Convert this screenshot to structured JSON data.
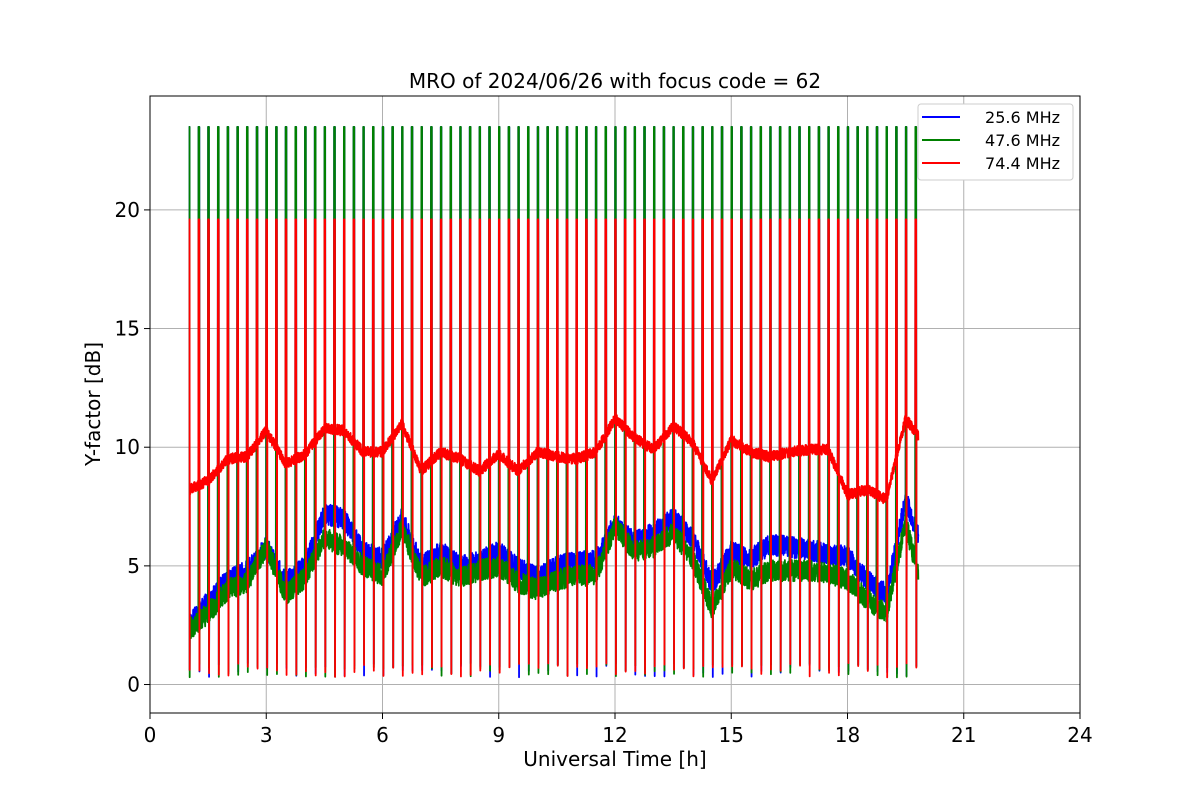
{
  "chart_data": {
    "type": "line",
    "title": "MRO of 2024/06/26 with focus code = 62",
    "xlabel": "Universal Time [h]",
    "ylabel": "Y-factor [dB]",
    "xlim": [
      0,
      24
    ],
    "ylim": [
      -1.2,
      24.8
    ],
    "xticks": [
      0,
      3,
      6,
      9,
      12,
      15,
      18,
      21,
      24
    ],
    "yticks": [
      0,
      5,
      10,
      15,
      20
    ],
    "grid": true,
    "legend_position": "top-right",
    "pulse": {
      "start_hour": 1.0,
      "end_hour": 19.83,
      "period_hours": 0.25,
      "width_hours": 0.05,
      "high_values": {
        "25.6 MHz": 23.5,
        "47.6 MHz": 23.5,
        "74.4 MHz": 19.6
      },
      "low_value": 0.3
    },
    "series": [
      {
        "name": "25.6 MHz",
        "color": "#0000ff",
        "x": [
          1.0,
          1.5,
          2.0,
          2.5,
          3.0,
          3.5,
          4.0,
          4.5,
          5.0,
          5.5,
          6.0,
          6.5,
          7.0,
          7.5,
          8.0,
          8.5,
          9.0,
          9.5,
          10.0,
          10.5,
          11.0,
          11.5,
          12.0,
          12.5,
          13.0,
          13.5,
          14.0,
          14.5,
          15.0,
          15.5,
          16.0,
          16.5,
          17.0,
          17.5,
          18.0,
          18.5,
          19.0,
          19.5,
          19.83
        ],
        "y": [
          2.5,
          3.5,
          4.4,
          4.8,
          5.8,
          4.3,
          5.0,
          7.2,
          7.0,
          5.6,
          5.3,
          7.0,
          5.0,
          5.6,
          5.0,
          5.2,
          5.6,
          4.9,
          4.5,
          5.0,
          5.2,
          5.2,
          6.8,
          6.0,
          6.4,
          7.0,
          6.2,
          4.2,
          5.6,
          5.3,
          5.9,
          5.8,
          5.7,
          5.5,
          5.4,
          4.4,
          3.8,
          7.8,
          6.2
        ]
      },
      {
        "name": "47.6 MHz",
        "color": "#008000",
        "x": [
          1.0,
          1.5,
          2.0,
          2.5,
          3.0,
          3.5,
          4.0,
          4.5,
          5.0,
          5.5,
          6.0,
          6.5,
          7.0,
          7.5,
          8.0,
          8.5,
          9.0,
          9.5,
          10.0,
          10.5,
          11.0,
          11.5,
          12.0,
          12.5,
          13.0,
          13.5,
          14.0,
          14.5,
          15.0,
          15.5,
          16.0,
          16.5,
          17.0,
          17.5,
          18.0,
          18.5,
          19.0,
          19.5,
          19.83
        ],
        "y": [
          2.3,
          3.0,
          4.0,
          4.3,
          5.8,
          3.8,
          4.5,
          6.2,
          5.8,
          5.0,
          4.6,
          6.6,
          4.5,
          5.0,
          4.5,
          4.8,
          5.0,
          4.3,
          4.0,
          4.4,
          4.6,
          4.6,
          6.7,
          5.6,
          5.8,
          6.4,
          5.3,
          3.2,
          4.9,
          4.4,
          4.8,
          4.8,
          4.8,
          4.7,
          4.4,
          3.6,
          3.0,
          6.8,
          4.6
        ]
      },
      {
        "name": "74.4 MHz",
        "color": "#ff0000",
        "x": [
          1.0,
          1.5,
          2.0,
          2.5,
          3.0,
          3.5,
          4.0,
          4.5,
          5.0,
          5.5,
          6.0,
          6.5,
          7.0,
          7.5,
          8.0,
          8.5,
          9.0,
          9.5,
          10.0,
          10.5,
          11.0,
          11.5,
          12.0,
          12.5,
          13.0,
          13.5,
          14.0,
          14.5,
          15.0,
          15.5,
          16.0,
          16.5,
          17.0,
          17.5,
          18.0,
          18.5,
          19.0,
          19.5,
          19.83
        ],
        "y": [
          8.2,
          8.6,
          9.5,
          9.6,
          10.7,
          9.3,
          9.7,
          10.8,
          10.7,
          9.8,
          9.8,
          11.0,
          9.0,
          9.8,
          9.5,
          9.0,
          9.7,
          9.0,
          9.8,
          9.6,
          9.5,
          9.8,
          11.2,
          10.4,
          9.9,
          10.9,
          10.2,
          8.6,
          10.3,
          9.8,
          9.6,
          9.8,
          9.9,
          9.9,
          8.0,
          8.2,
          7.8,
          11.2,
          10.5
        ]
      }
    ]
  }
}
